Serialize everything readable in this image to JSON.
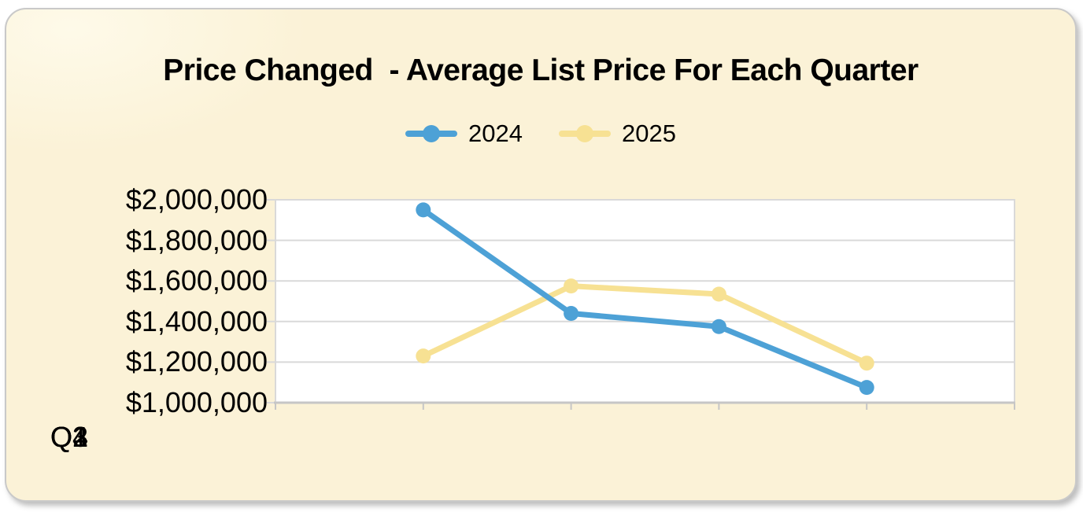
{
  "title": "Price Changed  - Average List Price For Each Quarter",
  "legend": {
    "items": [
      {
        "label": "2024",
        "color": "#4DA1D6"
      },
      {
        "label": "2025",
        "color": "#F7E193"
      }
    ]
  },
  "chart_data": {
    "type": "line",
    "title": "Price Changed  - Average List Price For Each Quarter",
    "categories": [
      "Q1",
      "Q2",
      "Q3",
      "Q4"
    ],
    "series": [
      {
        "name": "2024",
        "color": "#4DA1D6",
        "values": [
          1950000,
          1440000,
          1375000,
          1075000
        ]
      },
      {
        "name": "2025",
        "color": "#F7E193",
        "values": [
          1230000,
          1575000,
          1535000,
          1195000
        ]
      }
    ],
    "ylim": [
      1000000,
      2000000
    ],
    "y_tick_step": 200000,
    "y_tick_labels": [
      "$2,000,000",
      "$1,800,000",
      "$1,600,000",
      "$1,400,000",
      "$1,200,000",
      "$1,000,000"
    ],
    "y_tick_format": "$#,##0",
    "grid": true,
    "legend_position": "top-center",
    "colors": {
      "card_background": "#FBF2D7",
      "card_border": "#C9C9C9",
      "plot_background": "#FFFFFF",
      "grid_color": "#D9D9D9",
      "axis_color": "#C6C6C6",
      "text_color": "#000000"
    }
  }
}
